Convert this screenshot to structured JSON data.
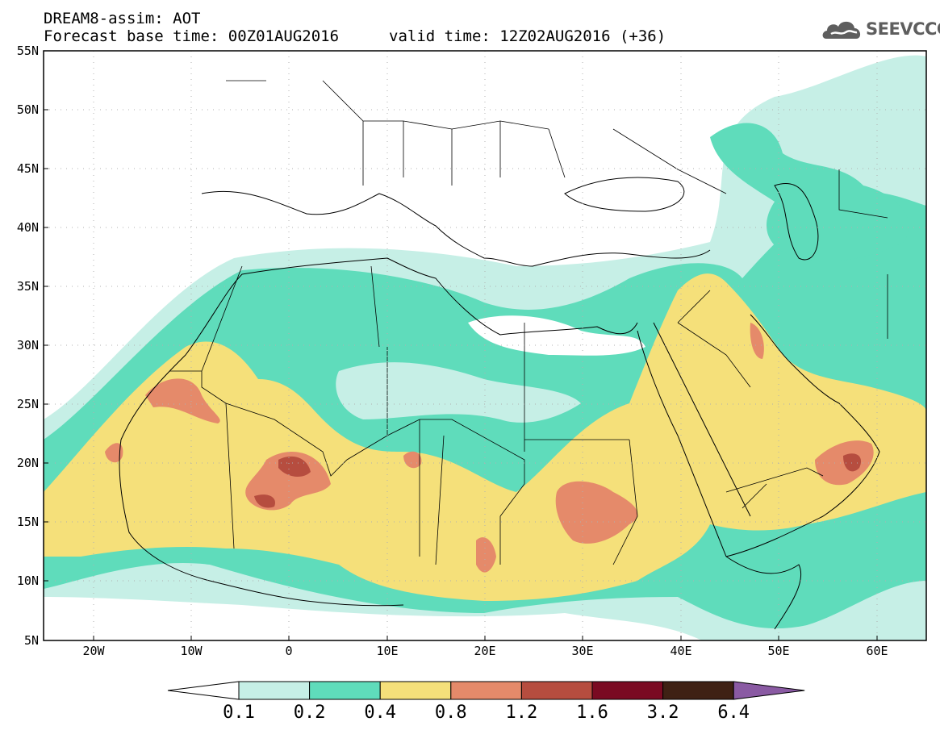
{
  "header": {
    "title": "DREAM8-assim: AOT",
    "base_time": "Forecast base time: 00Z01AUG2016",
    "valid_time": "valid time: 12Z02AUG2016 (+36)"
  },
  "logo": {
    "text": "SEEVCCC",
    "icon": "cloud-icon"
  },
  "axes": {
    "lat_ticks": [
      "55N",
      "50N",
      "45N",
      "40N",
      "35N",
      "30N",
      "25N",
      "20N",
      "15N",
      "10N",
      "5N"
    ],
    "lon_ticks": [
      "20W",
      "10W",
      "0",
      "10E",
      "20E",
      "30E",
      "40E",
      "50E",
      "60E"
    ],
    "lat_range": [
      5,
      55
    ],
    "lon_range": [
      -25,
      65
    ],
    "grid": "dotted"
  },
  "colorbar": {
    "labels": [
      "0.1",
      "0.2",
      "0.4",
      "0.8",
      "1.2",
      "1.6",
      "3.2",
      "6.4"
    ],
    "colors": [
      "#ffffff",
      "#c6efe6",
      "#5fdcbb",
      "#f5e07a",
      "#e58a6a",
      "#b64d3f",
      "#7a0a22",
      "#3f2114",
      "#8a5aa3"
    ]
  },
  "colors": {
    "land": "#ffffff",
    "very_low": "#c6efe6",
    "low": "#5fdcbb",
    "moderate": "#f5e07a",
    "high": "#e58a6a",
    "very_high": "#b64d3f",
    "extreme": "#7a0a22"
  }
}
